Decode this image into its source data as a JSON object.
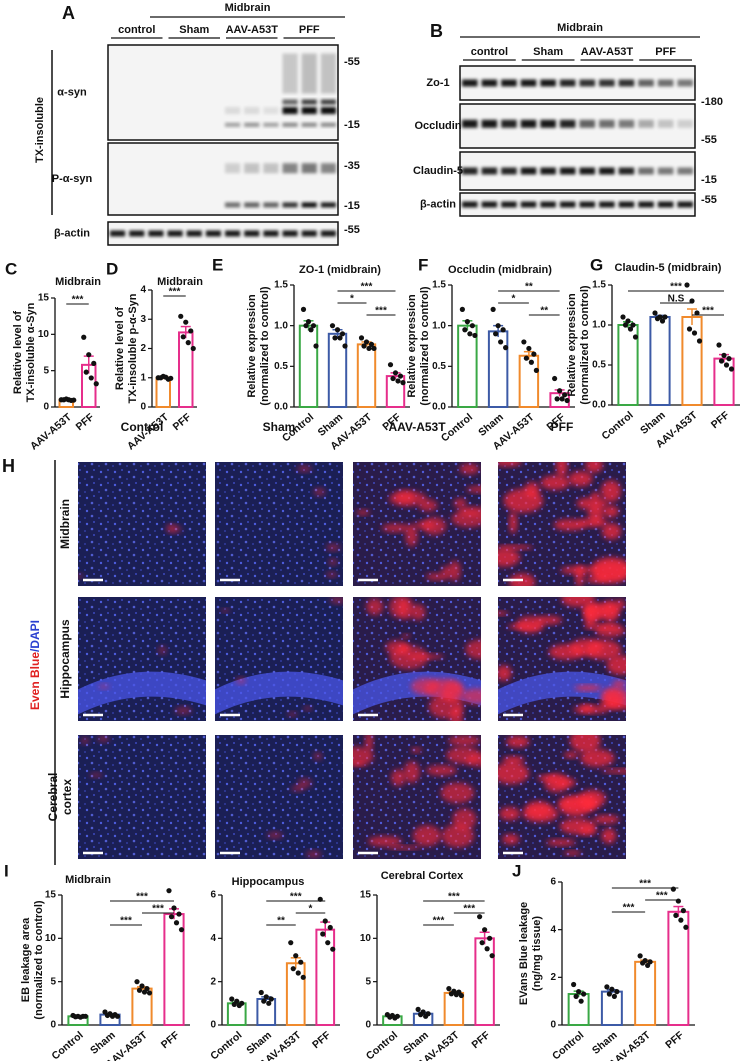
{
  "blots": [
    {
      "panel": "A",
      "title": "Midbrain",
      "groups": [
        "control",
        "Sham",
        "AAV-A53T",
        "PFF"
      ],
      "side_label": "TX-insoluble",
      "rows": [
        {
          "label": "α-syn",
          "markers": [
            "-55",
            "-15"
          ]
        },
        {
          "label": "P-α-syn",
          "markers": [
            "-35",
            "-15"
          ]
        },
        {
          "label": "β-actin",
          "markers": [
            "-55"
          ]
        }
      ]
    },
    {
      "panel": "B",
      "title": "Midbrain",
      "groups": [
        "control",
        "Sham",
        "AAV-A53T",
        "PFF"
      ],
      "rows": [
        {
          "label": "Zo-1",
          "markers": []
        },
        {
          "label": "Occludin",
          "markers": [
            "-180",
            "-55"
          ]
        },
        {
          "label": "Claudin-5",
          "markers": [
            "-15"
          ]
        },
        {
          "label": "β-actin",
          "markers": [
            "-55"
          ]
        }
      ]
    }
  ],
  "images": {
    "panel": "H",
    "columns": [
      "Control",
      "Sham",
      "AAV-A53T",
      "PFF"
    ],
    "rows": [
      "Midbrain",
      "Hippocampus",
      [
        "Cerebral",
        "cortex"
      ]
    ],
    "stain": [
      "Even Blue",
      "/DAPI"
    ]
  },
  "chart_data": [
    {
      "type": "bar",
      "panel": "C",
      "title": "Midbrain",
      "ylabel": [
        "Relative level of",
        "TX-insoluble α-Syn"
      ],
      "categories": [
        "AAV-A53T",
        "PFF"
      ],
      "colors": [
        "#f08a2c",
        "#e62e8b"
      ],
      "values": [
        1.0,
        5.8
      ],
      "errors": [
        0.1,
        1.2
      ],
      "points": [
        [
          1.0,
          1.1,
          0.9,
          1.0,
          1.0,
          0.95
        ],
        [
          9.6,
          7.2,
          6.0,
          4.8,
          4.0,
          3.2
        ]
      ],
      "ylim": [
        0,
        15
      ],
      "yticks": [
        0,
        5,
        10,
        15
      ],
      "annotations": [
        {
          "pair": [
            0,
            1
          ],
          "label": "***"
        }
      ]
    },
    {
      "type": "bar",
      "panel": "D",
      "title": "Midbrain",
      "ylabel": [
        "Relative level of",
        "TX-insoluble p-α-Syn"
      ],
      "categories": [
        "AAV-A53T",
        "PFF"
      ],
      "colors": [
        "#f08a2c",
        "#e62e8b"
      ],
      "values": [
        1.0,
        2.55
      ],
      "errors": [
        0.05,
        0.2
      ],
      "points": [
        [
          1.0,
          1.05,
          0.95,
          1.0,
          1.02,
          0.98
        ],
        [
          3.1,
          2.9,
          2.6,
          2.4,
          2.2,
          2.0
        ]
      ],
      "ylim": [
        0,
        4
      ],
      "yticks": [
        0,
        1,
        2,
        3,
        4
      ],
      "annotations": [
        {
          "pair": [
            0,
            1
          ],
          "label": "***"
        }
      ]
    },
    {
      "type": "bar",
      "panel": "E",
      "title": "ZO-1 (midbrain)",
      "ylabel": [
        "Relative expression",
        "(normalized to control)"
      ],
      "categories": [
        "Control",
        "Sham",
        "AAV-A53T",
        "PFF"
      ],
      "colors": [
        "#3aa845",
        "#3c5aa6",
        "#f08a2c",
        "#e62e8b"
      ],
      "values": [
        1.0,
        0.9,
        0.77,
        0.38
      ],
      "errors": [
        0.06,
        0.05,
        0.03,
        0.04
      ],
      "points": [
        [
          1.2,
          1.05,
          1.0,
          1.0,
          0.95,
          0.75
        ],
        [
          1.0,
          0.95,
          0.9,
          0.85,
          0.85,
          0.75
        ],
        [
          0.85,
          0.8,
          0.77,
          0.75,
          0.72,
          0.72
        ],
        [
          0.52,
          0.42,
          0.38,
          0.35,
          0.32,
          0.3
        ]
      ],
      "ylim": [
        0,
        1.5
      ],
      "yticks": [
        {
          "value": 0,
          "label": "0.0"
        },
        0.5,
        {
          "value": 1,
          "label": "1.0"
        },
        1.5
      ],
      "annotations": [
        {
          "pair": [
            1,
            3
          ],
          "label": "***"
        },
        {
          "pair": [
            1,
            2
          ],
          "label": "*"
        },
        {
          "pair": [
            2,
            3
          ],
          "label": "***"
        }
      ]
    },
    {
      "type": "bar",
      "panel": "F",
      "title": "Occludin (midbrain)",
      "ylabel": [
        "Relative expression",
        "(normalized to control)"
      ],
      "categories": [
        "Control",
        "Sham",
        "AAV-A53T",
        "PFF"
      ],
      "colors": [
        "#3aa845",
        "#3c5aa6",
        "#f08a2c",
        "#e62e8b"
      ],
      "values": [
        1.0,
        0.93,
        0.63,
        0.17
      ],
      "errors": [
        0.06,
        0.07,
        0.05,
        0.04
      ],
      "points": [
        [
          1.2,
          1.05,
          1.0,
          0.95,
          0.9,
          0.88
        ],
        [
          1.2,
          1.0,
          0.95,
          0.9,
          0.8,
          0.73
        ],
        [
          0.8,
          0.72,
          0.65,
          0.6,
          0.55,
          0.45
        ],
        [
          0.35,
          0.2,
          0.15,
          0.1,
          0.1,
          0.08
        ]
      ],
      "ylim": [
        0,
        1.5
      ],
      "yticks": [
        {
          "value": 0,
          "label": "0.0"
        },
        0.5,
        {
          "value": 1,
          "label": "1.0"
        },
        1.5
      ],
      "annotations": [
        {
          "pair": [
            1,
            3
          ],
          "label": "**"
        },
        {
          "pair": [
            1,
            2
          ],
          "label": "*"
        },
        {
          "pair": [
            2,
            3
          ],
          "label": "**"
        }
      ]
    },
    {
      "type": "bar",
      "panel": "G",
      "title": "Claudin-5 (midbrain)",
      "ylabel": [
        "Relative expression",
        "(normalized to control)"
      ],
      "categories": [
        "Control",
        "Sham",
        "AAV-A53T",
        "PFF"
      ],
      "colors": [
        "#3aa845",
        "#3c5aa6",
        "#f08a2c",
        "#e62e8b"
      ],
      "values": [
        1.0,
        1.1,
        1.1,
        0.58
      ],
      "errors": [
        0.04,
        0.02,
        0.1,
        0.05
      ],
      "points": [
        [
          1.1,
          1.05,
          1.0,
          1.0,
          0.95,
          0.85
        ],
        [
          1.15,
          1.1,
          1.1,
          1.08,
          1.05
        ],
        [
          1.5,
          1.3,
          1.15,
          0.95,
          0.9,
          0.8
        ],
        [
          0.75,
          0.62,
          0.58,
          0.55,
          0.5,
          0.45
        ]
      ],
      "ylim": [
        0,
        1.5
      ],
      "yticks": [
        {
          "value": 0,
          "label": "0.0"
        },
        0.5,
        {
          "value": 1,
          "label": "1.0"
        },
        1.5
      ],
      "annotations": [
        {
          "pair": [
            0,
            3
          ],
          "label": "***"
        },
        {
          "pair": [
            1,
            2
          ],
          "label": "N.S"
        },
        {
          "pair": [
            2,
            3
          ],
          "label": "***"
        }
      ]
    },
    {
      "type": "bar",
      "panel": "I",
      "title": "Midbrain",
      "ylabel": [
        "EB leakage area",
        "(normalized to control)"
      ],
      "categories": [
        "Control",
        "Sham",
        "AAV-A53T",
        "PFF"
      ],
      "colors": [
        "#3aa845",
        "#3c5aa6",
        "#f08a2c",
        "#e62e8b"
      ],
      "values": [
        1.0,
        1.2,
        4.2,
        12.8
      ],
      "errors": [
        0.05,
        0.1,
        0.2,
        0.6
      ],
      "points": [
        [
          1.1,
          1.0,
          1.0,
          0.95,
          0.9,
          1.0
        ],
        [
          1.5,
          1.3,
          1.2,
          1.1,
          1.0,
          1.0
        ],
        [
          5.0,
          4.5,
          4.2,
          4.0,
          3.8,
          3.7
        ],
        [
          15.5,
          13.5,
          12.8,
          12.5,
          11.8,
          11.0
        ]
      ],
      "ylim": [
        0,
        15
      ],
      "yticks": [
        0,
        5,
        10,
        15
      ],
      "annotations": [
        {
          "pair": [
            1,
            3
          ],
          "label": "***"
        },
        {
          "pair": [
            2,
            3
          ],
          "label": "***"
        },
        {
          "pair": [
            1,
            2
          ],
          "label": "***"
        }
      ]
    },
    {
      "type": "bar",
      "title": "Hippocampus",
      "categories": [
        "Control",
        "Sham",
        "AAV-A53T",
        "PFF"
      ],
      "colors": [
        "#3aa845",
        "#3c5aa6",
        "#f08a2c",
        "#e62e8b"
      ],
      "values": [
        1.0,
        1.2,
        2.85,
        4.4
      ],
      "errors": [
        0.05,
        0.1,
        0.25,
        0.35
      ],
      "points": [
        [
          1.2,
          1.1,
          1.0,
          0.95,
          0.9
        ],
        [
          1.5,
          1.3,
          1.2,
          1.1,
          1.0
        ],
        [
          3.8,
          3.2,
          2.9,
          2.6,
          2.4,
          2.2
        ],
        [
          5.8,
          4.8,
          4.5,
          4.2,
          3.8,
          3.5
        ]
      ],
      "ylim": [
        0,
        6
      ],
      "yticks": [
        0,
        2,
        4,
        6
      ],
      "annotations": [
        {
          "pair": [
            1,
            3
          ],
          "label": "***"
        },
        {
          "pair": [
            2,
            3
          ],
          "label": "*"
        },
        {
          "pair": [
            1,
            2
          ],
          "label": "**"
        }
      ]
    },
    {
      "type": "bar",
      "title": "Cerebral Cortex",
      "categories": [
        "Control",
        "Sham",
        "AAV-A53T",
        "PFF"
      ],
      "colors": [
        "#3aa845",
        "#3c5aa6",
        "#f08a2c",
        "#e62e8b"
      ],
      "values": [
        1.0,
        1.3,
        3.7,
        10.0
      ],
      "errors": [
        0.08,
        0.15,
        0.15,
        0.7
      ],
      "points": [
        [
          1.2,
          1.1,
          1.0,
          0.9,
          0.8
        ],
        [
          1.8,
          1.5,
          1.3,
          1.2,
          1.0
        ],
        [
          4.2,
          3.9,
          3.8,
          3.6,
          3.5,
          3.4
        ],
        [
          12.5,
          11.0,
          10.0,
          9.5,
          8.8,
          8.0
        ]
      ],
      "ylim": [
        0,
        15
      ],
      "yticks": [
        0,
        5,
        10,
        15
      ],
      "annotations": [
        {
          "pair": [
            1,
            3
          ],
          "label": "***"
        },
        {
          "pair": [
            2,
            3
          ],
          "label": "***"
        },
        {
          "pair": [
            1,
            2
          ],
          "label": "***"
        }
      ]
    },
    {
      "type": "bar",
      "panel": "J",
      "ylabel": [
        "EVans Blue leakage",
        "(ng/mg tissue)"
      ],
      "categories": [
        "Control",
        "Sham",
        "AAV-A53T",
        "PFF"
      ],
      "colors": [
        "#3aa845",
        "#3c5aa6",
        "#f08a2c",
        "#e62e8b"
      ],
      "values": [
        1.3,
        1.4,
        2.65,
        4.75
      ],
      "errors": [
        0.12,
        0.08,
        0.07,
        0.22
      ],
      "points": [
        [
          1.7,
          1.4,
          1.3,
          1.2,
          1.0
        ],
        [
          1.6,
          1.5,
          1.4,
          1.3,
          1.2
        ],
        [
          2.9,
          2.7,
          2.65,
          2.6,
          2.5
        ],
        [
          5.7,
          5.2,
          4.8,
          4.6,
          4.4,
          4.1
        ]
      ],
      "ylim": [
        0,
        6
      ],
      "yticks": [
        0,
        2,
        4,
        6
      ],
      "annotations": [
        {
          "pair": [
            1,
            3
          ],
          "label": "***"
        },
        {
          "pair": [
            2,
            3
          ],
          "label": "***"
        },
        {
          "pair": [
            1,
            2
          ],
          "label": "***"
        }
      ]
    }
  ]
}
